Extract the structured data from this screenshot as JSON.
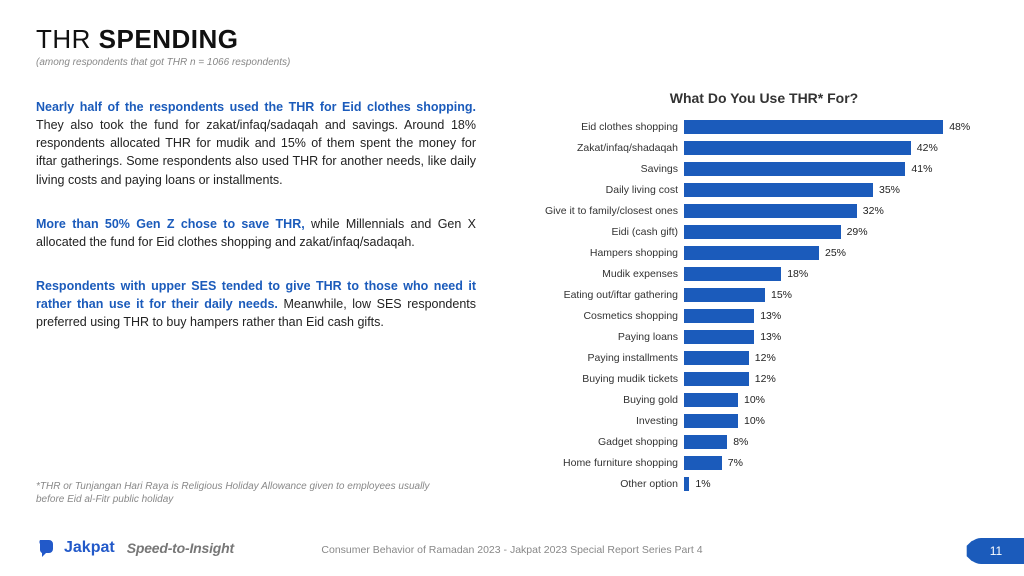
{
  "header": {
    "title_light": "THR ",
    "title_bold": "SPENDING",
    "subtitle": "(among respondents that got THR n = 1066 respondents)"
  },
  "body": {
    "para1_lead": "Nearly half of the respondents used the THR for Eid clothes shopping. ",
    "para1_rest": "They also took the fund for zakat/infaq/sadaqah and savings. Around 18% respondents allocated THR for mudik and 15% of them spent the money for iftar gatherings. Some respondents also used THR for another needs, like daily living costs and paying loans or installments.",
    "para2_lead": "More than 50% Gen Z chose to save THR, ",
    "para2_rest": "while Millennials and Gen X allocated the fund for Eid clothes shopping and zakat/infaq/sadaqah.",
    "para3_lead": "Respondents with upper SES tended to give THR to those who need it rather than use it for their daily needs. ",
    "para3_rest": "Meanwhile, low SES respondents preferred using THR to buy hampers rather than Eid cash gifts.",
    "footnote": "*THR or Tunjangan Hari Raya is Religious Holiday Allowance given to employees usually before Eid al-Fitr public holiday"
  },
  "chart": {
    "type": "bar",
    "title": "What Do You Use THR* For?",
    "bar_color": "#1b5bbb",
    "max_value": 50,
    "label_fontsize": 10.5,
    "value_fontsize": 10.5,
    "items": [
      {
        "label": "Eid clothes shopping",
        "value": 48,
        "display": "48%"
      },
      {
        "label": "Zakat/infaq/shadaqah",
        "value": 42,
        "display": "42%"
      },
      {
        "label": "Savings",
        "value": 41,
        "display": "41%"
      },
      {
        "label": "Daily living cost",
        "value": 35,
        "display": "35%"
      },
      {
        "label": "Give it to family/closest ones",
        "value": 32,
        "display": "32%"
      },
      {
        "label": "Eidi (cash gift)",
        "value": 29,
        "display": "29%"
      },
      {
        "label": "Hampers shopping",
        "value": 25,
        "display": "25%"
      },
      {
        "label": "Mudik expenses",
        "value": 18,
        "display": "18%"
      },
      {
        "label": "Eating out/iftar gathering",
        "value": 15,
        "display": "15%"
      },
      {
        "label": "Cosmetics shopping",
        "value": 13,
        "display": "13%"
      },
      {
        "label": "Paying loans",
        "value": 13,
        "display": "13%"
      },
      {
        "label": "Paying installments",
        "value": 12,
        "display": "12%"
      },
      {
        "label": "Buying mudik tickets",
        "value": 12,
        "display": "12%"
      },
      {
        "label": "Buying gold",
        "value": 10,
        "display": "10%"
      },
      {
        "label": "Investing",
        "value": 10,
        "display": "10%"
      },
      {
        "label": "Gadget shopping",
        "value": 8,
        "display": "8%"
      },
      {
        "label": "Home furniture shopping",
        "value": 7,
        "display": "7%"
      },
      {
        "label": "Other option",
        "value": 1,
        "display": "1%"
      }
    ]
  },
  "footer": {
    "brand_name": "Jakpat",
    "tagline": "Speed-to-Insight",
    "center_text": "Consumer Behavior of Ramadan 2023 - Jakpat 2023 Special Report Series Part 4",
    "page_number": "11"
  }
}
